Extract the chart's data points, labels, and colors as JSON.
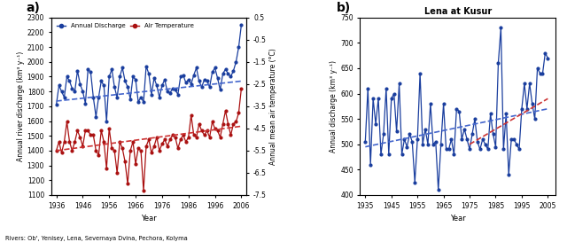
{
  "panel_a": {
    "title": "a)",
    "years": [
      1936,
      1937,
      1938,
      1939,
      1940,
      1941,
      1942,
      1943,
      1944,
      1945,
      1946,
      1947,
      1948,
      1949,
      1950,
      1951,
      1952,
      1953,
      1954,
      1955,
      1956,
      1957,
      1958,
      1959,
      1960,
      1961,
      1962,
      1963,
      1964,
      1965,
      1966,
      1967,
      1968,
      1969,
      1970,
      1971,
      1972,
      1973,
      1974,
      1975,
      1976,
      1977,
      1978,
      1979,
      1980,
      1981,
      1982,
      1983,
      1984,
      1985,
      1986,
      1987,
      1988,
      1989,
      1990,
      1991,
      1992,
      1993,
      1994,
      1995,
      1996,
      1997,
      1998,
      1999,
      2000,
      2001,
      2002,
      2003,
      2004,
      2005,
      2006
    ],
    "discharge": [
      1710,
      1840,
      1800,
      1760,
      1900,
      1870,
      1820,
      1800,
      1940,
      1850,
      1800,
      1720,
      1950,
      1930,
      1760,
      1630,
      1760,
      1870,
      1840,
      1600,
      1900,
      1950,
      1830,
      1760,
      1900,
      1960,
      1870,
      1830,
      1750,
      1900,
      1880,
      1730,
      1760,
      1730,
      1970,
      1920,
      1780,
      1890,
      1840,
      1760,
      1840,
      1880,
      1800,
      1790,
      1820,
      1810,
      1780,
      1900,
      1910,
      1860,
      1880,
      1850,
      1910,
      1960,
      1870,
      1830,
      1880,
      1870,
      1830,
      1930,
      1960,
      1890,
      1810,
      1920,
      1950,
      1920,
      1900,
      1940,
      2000,
      2100,
      2250
    ],
    "temperature": [
      -5.5,
      -5.1,
      -5.6,
      -5.1,
      -4.2,
      -5.1,
      -5.5,
      -5.1,
      -4.6,
      -4.9,
      -5.3,
      -4.6,
      -4.6,
      -4.8,
      -4.8,
      -5.5,
      -5.7,
      -4.6,
      -5.1,
      -6.3,
      -4.5,
      -5.4,
      -5.5,
      -6.5,
      -5.1,
      -5.4,
      -6.0,
      -7.0,
      -5.5,
      -5.1,
      -6.1,
      -5.4,
      -5.5,
      -7.3,
      -5.3,
      -5.0,
      -5.6,
      -5.3,
      -4.9,
      -5.5,
      -5.2,
      -5.0,
      -5.3,
      -5.0,
      -4.8,
      -4.9,
      -5.4,
      -5.0,
      -4.8,
      -5.1,
      -4.9,
      -3.9,
      -4.8,
      -4.9,
      -4.3,
      -4.6,
      -4.8,
      -4.6,
      -4.9,
      -4.2,
      -4.5,
      -4.6,
      -4.9,
      -4.3,
      -3.7,
      -4.3,
      -4.8,
      -4.3,
      -4.2,
      -3.8,
      -2.7
    ],
    "discharge_trend": [
      1735,
      1870
    ],
    "temp_trend": [
      -5.5,
      -4.4
    ],
    "trend_years": [
      1936,
      2006
    ],
    "ylabel_left": "Annual river discharge (km³ y⁻¹)",
    "ylabel_right": "Annual mean air temperature (°C)",
    "xlabel": "Year",
    "yticks_left": [
      1100,
      1200,
      1300,
      1400,
      1500,
      1600,
      1700,
      1800,
      1900,
      2000,
      2100,
      2200,
      2300
    ],
    "yticks_right": [
      0.5,
      -0.5,
      -1.5,
      -2.5,
      -3.5,
      -4.5,
      -5.5,
      -6.5,
      -7.5
    ],
    "xticks": [
      1936,
      1946,
      1956,
      1966,
      1976,
      1986,
      1996,
      2006
    ],
    "ylim_left": [
      1100,
      2300
    ],
    "ylim_right": [
      -7.5,
      0.5
    ],
    "discharge_color": "#1a3e9e",
    "temp_color": "#aa1111",
    "trend_color_discharge": "#4466cc",
    "trend_color_temp": "#cc3333",
    "subtitle": "Rivers: Ob', Yenisey, Lena, Severnaya Dvina, Pechora, Kolyma",
    "legend_discharge": "Annual Discharge",
    "legend_temp": "Air Temperature"
  },
  "panel_b": {
    "title": "b)",
    "chart_title": "Lena at Kusur",
    "years": [
      1935,
      1936,
      1937,
      1938,
      1939,
      1940,
      1941,
      1942,
      1943,
      1944,
      1945,
      1946,
      1947,
      1948,
      1949,
      1950,
      1951,
      1952,
      1953,
      1954,
      1955,
      1956,
      1957,
      1958,
      1959,
      1960,
      1961,
      1962,
      1963,
      1964,
      1965,
      1966,
      1967,
      1968,
      1969,
      1970,
      1971,
      1972,
      1973,
      1974,
      1975,
      1976,
      1977,
      1978,
      1979,
      1980,
      1981,
      1982,
      1983,
      1984,
      1985,
      1986,
      1987,
      1988,
      1989,
      1990,
      1991,
      1992,
      1993,
      1994,
      1995,
      1996,
      1997,
      1998,
      1999,
      2000,
      2001,
      2002,
      2003,
      2004,
      2005
    ],
    "discharge": [
      505,
      610,
      460,
      590,
      540,
      590,
      480,
      520,
      610,
      480,
      590,
      600,
      525,
      620,
      480,
      510,
      495,
      520,
      505,
      425,
      510,
      640,
      500,
      530,
      500,
      580,
      500,
      505,
      410,
      500,
      580,
      490,
      490,
      510,
      480,
      570,
      565,
      510,
      530,
      510,
      490,
      520,
      550,
      505,
      490,
      510,
      500,
      490,
      560,
      520,
      495,
      660,
      730,
      490,
      560,
      440,
      510,
      510,
      500,
      490,
      570,
      620,
      570,
      620,
      580,
      550,
      650,
      640,
      640,
      680,
      670
    ],
    "trend_all_years": [
      1935,
      2005
    ],
    "trend_all": [
      495,
      570
    ],
    "trend_1975_years": [
      1975,
      2005
    ],
    "trend_1975": [
      500,
      590
    ],
    "ylabel": "Annual discharge (km³ y⁻¹)",
    "xlabel": "Year",
    "yticks": [
      400,
      450,
      500,
      550,
      600,
      650,
      700,
      750
    ],
    "xticks": [
      1935,
      1945,
      1955,
      1965,
      1975,
      1985,
      1995,
      2005
    ],
    "ylim": [
      400,
      750
    ],
    "line_color": "#1a3e9e",
    "trend_all_color": "#4466cc",
    "trend_1975_color": "#cc3333"
  }
}
